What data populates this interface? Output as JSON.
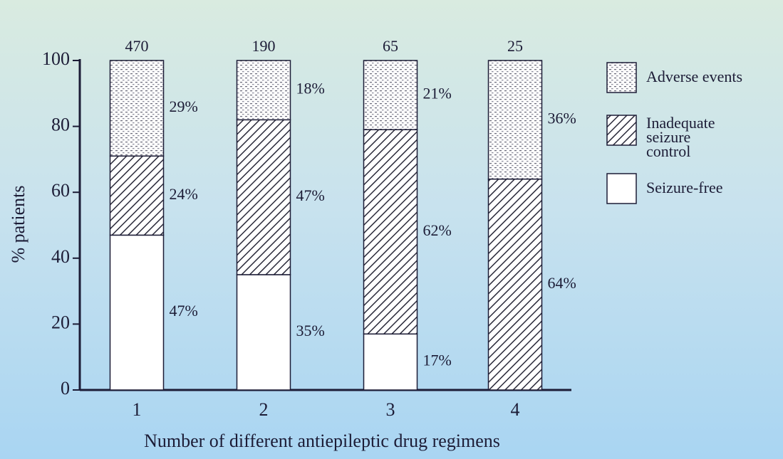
{
  "chart_data": {
    "type": "stacked_bar",
    "x_label": "Number of different antiepileptic drug regimens",
    "y_label": "% patients",
    "categories": [
      "1",
      "2",
      "3",
      "4"
    ],
    "sample_sizes": [
      470,
      190,
      65,
      25
    ],
    "series": [
      {
        "name": "Seizure-free",
        "color": "#ffffff",
        "pattern": "none",
        "values": [
          47,
          35,
          17,
          null
        ],
        "value_labels": [
          "47%",
          "35%",
          "17%",
          null
        ]
      },
      {
        "name": "Inadequate seizure control",
        "color": "#2a2a3a",
        "pattern": "hatch",
        "values": [
          24,
          47,
          62,
          64
        ],
        "value_labels": [
          "24%",
          "47%",
          "62%",
          "64%"
        ]
      },
      {
        "name": "Adverse events",
        "color": "#6a6a7a",
        "pattern": "dots",
        "values": [
          29,
          18,
          21,
          36
        ],
        "value_labels": [
          "29%",
          "18%",
          "21%",
          "36%"
        ]
      }
    ],
    "ylim": [
      0,
      100
    ],
    "yticks": [
      0,
      20,
      40,
      60,
      80,
      100
    ]
  }
}
